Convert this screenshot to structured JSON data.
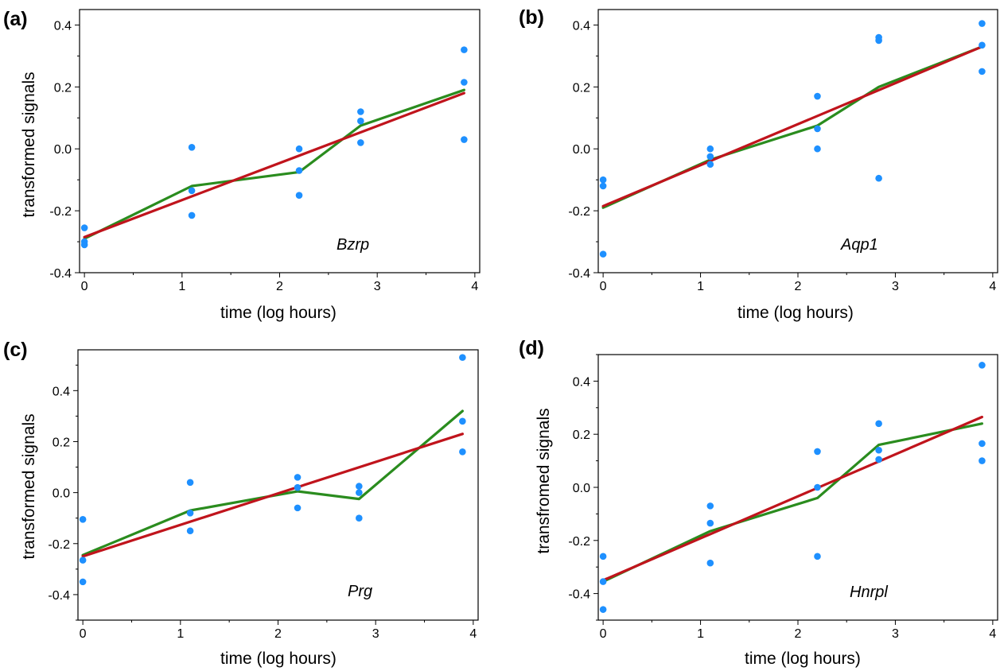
{
  "figure": {
    "panels": [
      {
        "letter": "(a)",
        "gene": "Bzrp",
        "xlabel": "time (log hours)",
        "ylabel": "transformed signals"
      },
      {
        "letter": "(b)",
        "gene": "Aqp1",
        "xlabel": "time (log hours)",
        "ylabel": ""
      },
      {
        "letter": "(c)",
        "gene": "Prg",
        "xlabel": "time (log hours)",
        "ylabel": "transformed signals"
      },
      {
        "letter": "(d)",
        "gene": "Hnrpl",
        "xlabel": "time (log hours)",
        "ylabel": "transfromed signals"
      }
    ]
  },
  "chart_data": [
    {
      "type": "scatter",
      "panel": "(a)",
      "annotation": "Bzrp",
      "xlabel": "time (log hours)",
      "ylabel": "transformed signals",
      "xlim": [
        -0.05,
        4.05
      ],
      "ylim": [
        -0.4,
        0.45
      ],
      "xticks": [
        0,
        1,
        2,
        3,
        4
      ],
      "yticks": [
        -0.4,
        -0.2,
        0.0,
        0.2,
        0.4
      ],
      "ytick_labels": [
        "-0.4",
        "-0.2",
        "0.0",
        "0.2",
        "0.4"
      ],
      "points_color": "#1e90ff",
      "points": [
        [
          0,
          -0.255
        ],
        [
          0,
          -0.3
        ],
        [
          0,
          -0.31
        ],
        [
          1.1,
          0.005
        ],
        [
          1.1,
          -0.135
        ],
        [
          1.1,
          -0.215
        ],
        [
          2.2,
          0.0
        ],
        [
          2.2,
          -0.07
        ],
        [
          2.2,
          -0.15
        ],
        [
          2.83,
          0.12
        ],
        [
          2.83,
          0.09
        ],
        [
          2.83,
          0.02
        ],
        [
          3.89,
          0.32
        ],
        [
          3.89,
          0.215
        ],
        [
          3.89,
          0.03
        ]
      ],
      "series": [
        {
          "color": "#2a8c1e",
          "x": [
            0,
            1.1,
            2.2,
            2.83,
            3.89
          ],
          "y": [
            -0.29,
            -0.12,
            -0.075,
            0.075,
            0.19
          ]
        },
        {
          "color": "#c0141c",
          "x": [
            0,
            3.89
          ],
          "y": [
            -0.285,
            0.18
          ]
        }
      ]
    },
    {
      "type": "scatter",
      "panel": "(b)",
      "annotation": "Aqp1",
      "xlabel": "time (log hours)",
      "ylabel": "",
      "xlim": [
        -0.05,
        4.05
      ],
      "ylim": [
        -0.4,
        0.45
      ],
      "xticks": [
        0,
        1,
        2,
        3,
        4
      ],
      "yticks": [
        -0.4,
        -0.2,
        0.0,
        0.2,
        0.4
      ],
      "ytick_labels": [
        "-0.4",
        "-0.2",
        "0.0",
        "0.2",
        "0.4"
      ],
      "points_color": "#1e90ff",
      "points": [
        [
          0,
          -0.1
        ],
        [
          0,
          -0.12
        ],
        [
          0,
          -0.34
        ],
        [
          1.1,
          0.0
        ],
        [
          1.1,
          -0.025
        ],
        [
          1.1,
          -0.05
        ],
        [
          2.2,
          0.17
        ],
        [
          2.2,
          0.065
        ],
        [
          2.2,
          0.0
        ],
        [
          2.83,
          0.36
        ],
        [
          2.83,
          0.35
        ],
        [
          2.83,
          -0.095
        ],
        [
          3.89,
          0.405
        ],
        [
          3.89,
          0.335
        ],
        [
          3.89,
          0.25
        ]
      ],
      "series": [
        {
          "color": "#2a8c1e",
          "x": [
            0,
            1.1,
            2.2,
            2.83,
            3.89
          ],
          "y": [
            -0.19,
            -0.035,
            0.075,
            0.2,
            0.33
          ]
        },
        {
          "color": "#c0141c",
          "x": [
            0,
            3.89
          ],
          "y": [
            -0.185,
            0.33
          ]
        }
      ]
    },
    {
      "type": "scatter",
      "panel": "(c)",
      "annotation": "Prg",
      "xlabel": "time (log hours)",
      "ylabel": "transformed signals",
      "xlim": [
        -0.05,
        4.05
      ],
      "ylim": [
        -0.5,
        0.56
      ],
      "xticks": [
        0,
        1,
        2,
        3,
        4
      ],
      "yticks": [
        -0.4,
        -0.2,
        0.0,
        0.2,
        0.4
      ],
      "ytick_labels": [
        "-0.4",
        "-0.2",
        "0.0",
        "0.2",
        "0.4"
      ],
      "points_color": "#1e90ff",
      "points": [
        [
          0,
          -0.105
        ],
        [
          0,
          -0.265
        ],
        [
          0,
          -0.35
        ],
        [
          1.1,
          0.04
        ],
        [
          1.1,
          -0.08
        ],
        [
          1.1,
          -0.15
        ],
        [
          2.2,
          0.06
        ],
        [
          2.2,
          0.02
        ],
        [
          2.2,
          -0.06
        ],
        [
          2.83,
          0.025
        ],
        [
          2.83,
          0.0
        ],
        [
          2.83,
          -0.1
        ],
        [
          3.89,
          0.53
        ],
        [
          3.89,
          0.28
        ],
        [
          3.89,
          0.16
        ]
      ],
      "series": [
        {
          "color": "#2a8c1e",
          "x": [
            0,
            1.1,
            2.2,
            2.83,
            3.89
          ],
          "y": [
            -0.245,
            -0.07,
            0.005,
            -0.025,
            0.32
          ]
        },
        {
          "color": "#c0141c",
          "x": [
            0,
            3.89
          ],
          "y": [
            -0.25,
            0.23
          ]
        }
      ]
    },
    {
      "type": "scatter",
      "panel": "(d)",
      "annotation": "Hnrpl",
      "xlabel": "time (log hours)",
      "ylabel": "transfromed signals",
      "xlim": [
        -0.05,
        4.05
      ],
      "ylim": [
        -0.5,
        0.5
      ],
      "xticks": [
        0,
        1,
        2,
        3,
        4
      ],
      "yticks": [
        -0.4,
        -0.2,
        0.0,
        0.2,
        0.4
      ],
      "ytick_labels": [
        "-0.4",
        "-0.2",
        "0.0",
        "0.2",
        "0.4"
      ],
      "points_color": "#1e90ff",
      "points": [
        [
          0,
          -0.26
        ],
        [
          0,
          -0.355
        ],
        [
          0,
          -0.46
        ],
        [
          1.1,
          -0.07
        ],
        [
          1.1,
          -0.135
        ],
        [
          1.1,
          -0.285
        ],
        [
          2.2,
          0.135
        ],
        [
          2.2,
          0.0
        ],
        [
          2.2,
          -0.26
        ],
        [
          2.83,
          0.24
        ],
        [
          2.83,
          0.14
        ],
        [
          2.83,
          0.105
        ],
        [
          3.89,
          0.46
        ],
        [
          3.89,
          0.165
        ],
        [
          3.89,
          0.1
        ]
      ],
      "series": [
        {
          "color": "#2a8c1e",
          "x": [
            0,
            1.1,
            2.2,
            2.83,
            3.89
          ],
          "y": [
            -0.355,
            -0.165,
            -0.04,
            0.16,
            0.24
          ]
        },
        {
          "color": "#c0141c",
          "x": [
            0,
            3.89
          ],
          "y": [
            -0.35,
            0.265
          ]
        }
      ]
    }
  ]
}
